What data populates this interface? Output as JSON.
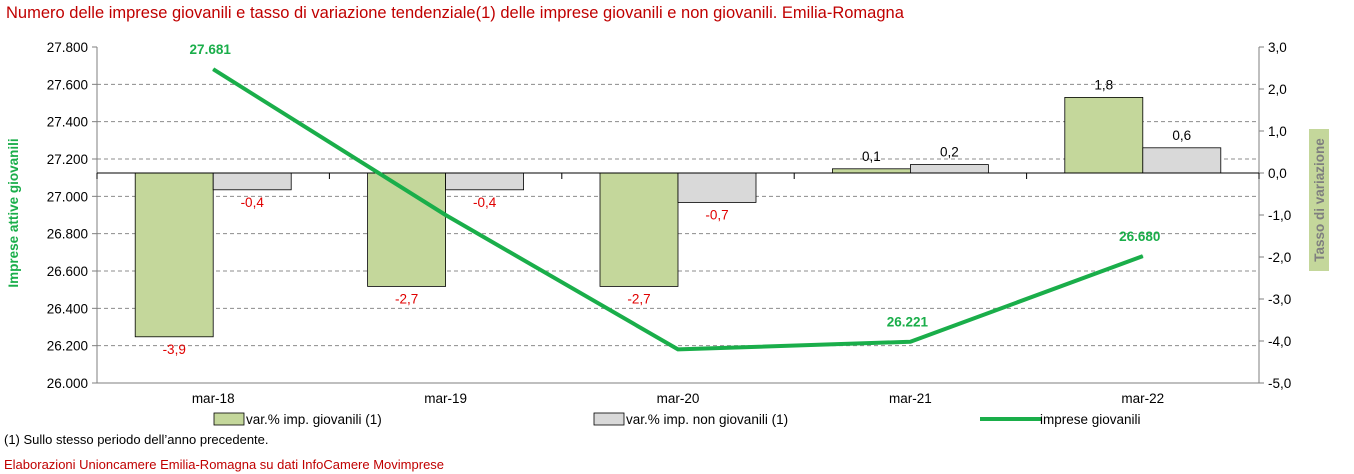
{
  "title": "Numero delle imprese giovanili e tasso di variazione tendenziale(1) delle imprese giovanili e non giovanili. Emilia-Romagna",
  "footnote": "(1) Sullo stesso periodo dell’anno precedente.",
  "source": "Elaborazioni Unioncamere Emilia-Romagna su dati InfoCamere Movimprese",
  "colors": {
    "title": "#c00000",
    "bar_young": "#c4d79b",
    "bar_nonyoung": "#d9d9d9",
    "line": "#1aae4a",
    "neg_label": "#e00000",
    "axis_left_label": "#1aae4a",
    "axis_right_label_bg": "#c4d79b",
    "axis_right_label_text": "#7f7f7f"
  },
  "chart_data": {
    "type": "bar",
    "categories": [
      "mar-18",
      "mar-19",
      "mar-20",
      "mar-21",
      "mar-22"
    ],
    "y_left": {
      "label": "Imprese attive giovanili",
      "range": [
        26000,
        27800
      ],
      "ticks": [
        "26.000",
        "26.200",
        "26.400",
        "26.600",
        "26.800",
        "27.000",
        "27.200",
        "27.400",
        "27.600",
        "27.800"
      ]
    },
    "y_right": {
      "label": "Tasso di variazione",
      "range": [
        -5,
        3
      ],
      "ticks": [
        "-5,0",
        "-4,0",
        "-3,0",
        "-2,0",
        "-1,0",
        "0,0",
        "1,0",
        "2,0",
        "3,0"
      ]
    },
    "grid": true,
    "legend_position": "bottom",
    "series": [
      {
        "name": "var.% imp. giovanili (1)",
        "type": "bar",
        "axis": "right",
        "values": [
          -3.9,
          -2.7,
          -2.7,
          0.1,
          1.8
        ],
        "labels": [
          "-3,9",
          "-2,7",
          "-2,7",
          "0,1",
          "1,8"
        ]
      },
      {
        "name": "var.% imp. non giovanili (1)",
        "type": "bar",
        "axis": "right",
        "values": [
          -0.4,
          -0.4,
          -0.7,
          0.2,
          0.6
        ],
        "labels": [
          "-0,4",
          "-0,4",
          "-0,7",
          "0,2",
          "0,6"
        ]
      },
      {
        "name": "imprese giovanili",
        "type": "line",
        "axis": "left",
        "values": [
          27681,
          26900,
          26180,
          26221,
          26680
        ],
        "labels": [
          "27.681",
          "",
          "",
          "26.221",
          "26.680"
        ]
      }
    ]
  }
}
